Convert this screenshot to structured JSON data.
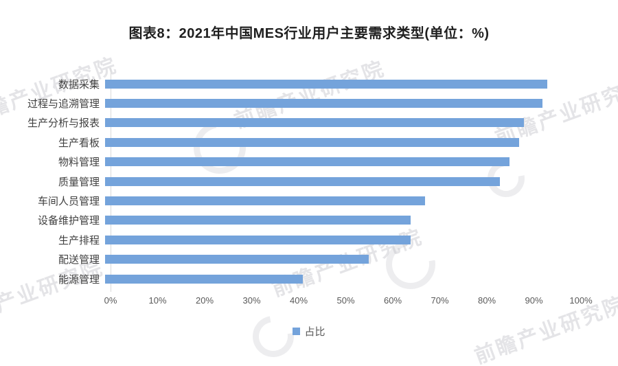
{
  "title": "图表8：2021年中国MES行业用户主要需求类型(单位：%)",
  "chart_data": {
    "type": "bar",
    "orientation": "horizontal",
    "title": "图表8：2021年中国MES行业用户主要需求类型(单位：%)",
    "categories": [
      "数据采集",
      "过程与追溯管理",
      "生产分析与报表",
      "生产看板",
      "物料管理",
      "质量管理",
      "车间人员管理",
      "设备维护管理",
      "生产排程",
      "配送管理",
      "能源管理"
    ],
    "series": [
      {
        "name": "占比",
        "values": [
          94,
          93,
          89,
          88,
          86,
          84,
          68,
          65,
          65,
          56,
          42
        ]
      }
    ],
    "x_ticks": [
      "0%",
      "10%",
      "20%",
      "30%",
      "40%",
      "50%",
      "60%",
      "70%",
      "80%",
      "90%",
      "100%"
    ],
    "xlim": [
      0,
      100
    ],
    "xlabel": "",
    "ylabel": "",
    "grid": false,
    "legend_position": "bottom",
    "bar_color": "#74a3db"
  },
  "legend": {
    "label": "占比",
    "swatch_color": "#74a3db"
  },
  "watermark": {
    "text": "前瞻产业研究院"
  },
  "colors": {
    "bar": "#74a3db",
    "axis_line": "#d9d9d9",
    "tick_text": "#595959",
    "category_text": "#404040",
    "title_text": "#1f1f1f"
  }
}
